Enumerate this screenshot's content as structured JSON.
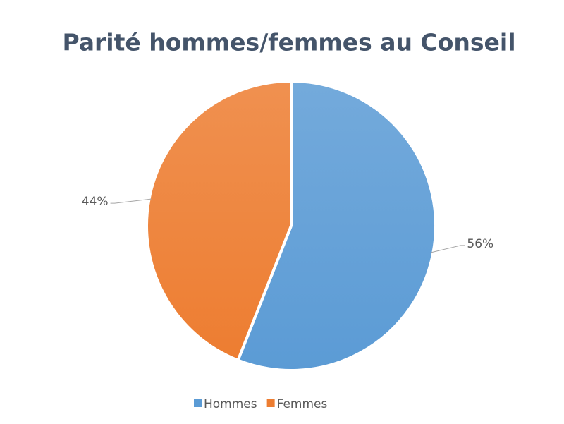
{
  "chart_data": {
    "type": "pie",
    "title": "Parité hommes/femmes au Conseil",
    "categories": [
      "Hommes",
      "Femmes"
    ],
    "values": [
      56,
      44
    ],
    "value_labels": [
      "56%",
      "44%"
    ],
    "colors": [
      "#5b9bd5",
      "#ed7d31"
    ],
    "legend": "bottom"
  }
}
